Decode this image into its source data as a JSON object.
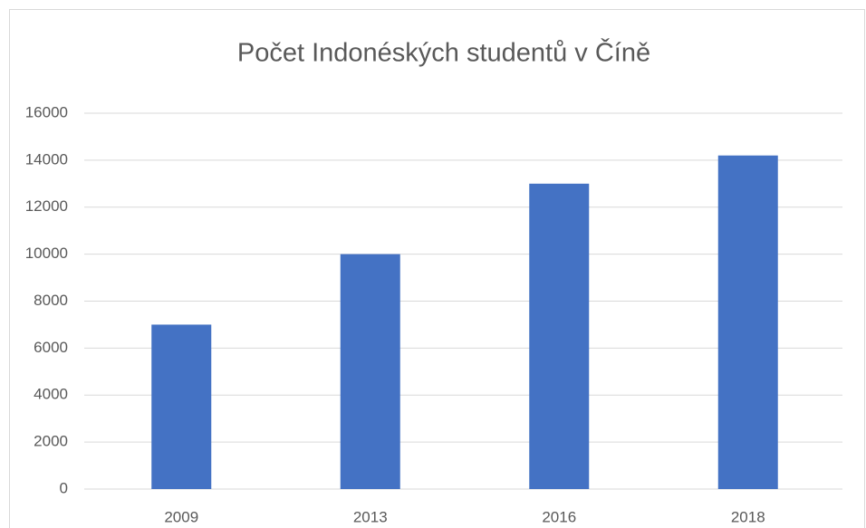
{
  "chart_data": {
    "type": "bar",
    "title": "Počet Indonéských studentů v Číně",
    "categories": [
      "2009",
      "2013",
      "2016",
      "2018"
    ],
    "values": [
      7000,
      10000,
      13000,
      14200
    ],
    "color": "#4472c4",
    "ylim": [
      0,
      16000
    ],
    "yticks": [
      0,
      2000,
      4000,
      6000,
      8000,
      10000,
      12000,
      14000,
      16000
    ],
    "grid": true
  }
}
